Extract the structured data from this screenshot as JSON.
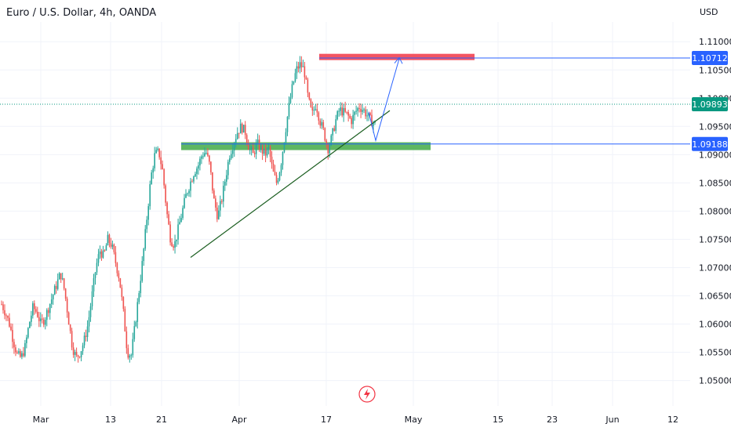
{
  "header": {
    "title": "Euro / U.S. Dollar, 4h, OANDA",
    "currency": "USD"
  },
  "colors": {
    "up": "#26a69a",
    "down": "#ef5350",
    "support_zone": "#4caf50",
    "resistance_zone": "#f23645",
    "level_line": "#2962ff",
    "dotted_price": "#089981",
    "trendline": "#1b5e20",
    "axis_text": "#131722"
  },
  "icons": {
    "bolt": "lightning-bolt-icon"
  },
  "chart_data": {
    "type": "candlestick",
    "title": "Euro / U.S. Dollar, 4h, OANDA",
    "ylim": [
      1.0455,
      1.1135
    ],
    "y_ticks": [
      "1.11000",
      "1.10500",
      "1.10000",
      "1.09500",
      "1.09000",
      "1.08500",
      "1.08000",
      "1.07500",
      "1.07000",
      "1.06500",
      "1.06000",
      "1.05500",
      "1.05000"
    ],
    "x_ticks": [
      "Mar",
      "13",
      "21",
      "Apr",
      "17",
      "May",
      "15",
      "23",
      "Jun",
      "12"
    ],
    "price_labels": [
      {
        "text": "1.10712",
        "value": 1.10712,
        "style": "level"
      },
      {
        "text": "1.09893",
        "value": 1.09893,
        "style": "current"
      },
      {
        "text": "1.09188",
        "value": 1.09188,
        "style": "level"
      }
    ],
    "zones": [
      {
        "name": "resistance",
        "value": 1.1073
      },
      {
        "name": "support",
        "value": 1.0915
      }
    ],
    "levels": [
      1.10712,
      1.09188
    ],
    "current_price": 1.09893,
    "trendline": [
      [
        1.0718,
        1.0908
      ]
    ],
    "projection": [
      1.098,
      1.0925,
      1.107
    ],
    "price_path": [
      1.0635,
      1.062,
      1.06,
      1.057,
      1.0545,
      1.054,
      1.056,
      1.06,
      1.063,
      1.062,
      1.06,
      1.061,
      1.063,
      1.065,
      1.067,
      1.069,
      1.066,
      1.061,
      1.056,
      1.054,
      1.055,
      1.057,
      1.06,
      1.065,
      1.07,
      1.073,
      1.072,
      1.075,
      1.074,
      1.071,
      1.068,
      1.062,
      1.055,
      1.0545,
      1.06,
      1.066,
      1.072,
      1.079,
      1.086,
      1.09,
      1.0905,
      1.087,
      1.08,
      1.075,
      1.074,
      1.077,
      1.08,
      1.083,
      1.085,
      1.087,
      1.088,
      1.09,
      1.0905,
      1.088,
      1.082,
      1.079,
      1.082,
      1.086,
      1.09,
      1.092,
      1.094,
      1.095,
      1.094,
      1.091,
      1.09,
      1.092,
      1.091,
      1.09,
      1.091,
      1.087,
      1.085,
      1.088,
      1.093,
      1.098,
      1.102,
      1.105,
      1.106,
      1.105,
      1.1,
      1.097,
      1.099,
      1.096,
      1.094,
      1.091,
      1.093,
      1.096,
      1.098,
      1.0975,
      1.097,
      1.096,
      1.0975,
      1.0985,
      1.098,
      1.097,
      1.096,
      1.0955
    ]
  }
}
